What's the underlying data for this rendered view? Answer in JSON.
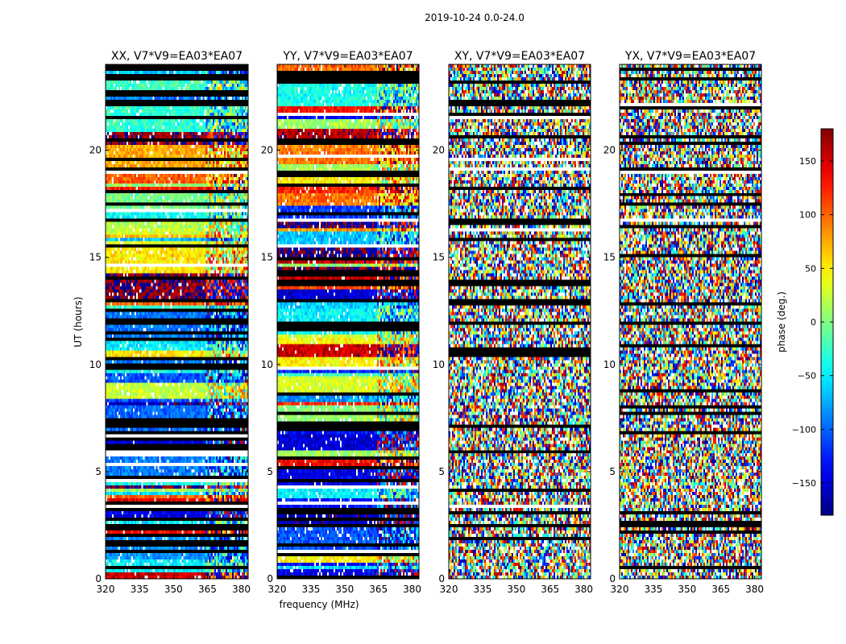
{
  "figure_title": "2019-10-24 0.0-24.0",
  "chart_data": [
    {
      "type": "heatmap",
      "title": "XX, V7*V9=EA03*EA07",
      "xlabel": "",
      "ylabel": "UT (hours)",
      "xlim": [
        320,
        383
      ],
      "ylim": [
        0,
        24
      ],
      "xticks": [
        320,
        335,
        350,
        365,
        380
      ],
      "yticks": [
        0,
        5,
        10,
        15,
        20
      ],
      "value": "phase (deg.)",
      "value_range": [
        -180,
        180
      ],
      "pattern": "coherent"
    },
    {
      "type": "heatmap",
      "title": "YY, V7*V9=EA03*EA07",
      "xlabel": "frequency (MHz)",
      "ylabel": "",
      "xlim": [
        320,
        383
      ],
      "ylim": [
        0,
        24
      ],
      "xticks": [
        320,
        335,
        350,
        365,
        380
      ],
      "yticks": [
        0,
        5,
        10,
        15,
        20
      ],
      "value": "phase (deg.)",
      "value_range": [
        -180,
        180
      ],
      "pattern": "coherent"
    },
    {
      "type": "heatmap",
      "title": "XY, V7*V9=EA03*EA07",
      "xlabel": "",
      "ylabel": "",
      "xlim": [
        320,
        383
      ],
      "ylim": [
        0,
        24
      ],
      "xticks": [
        320,
        335,
        350,
        365,
        380
      ],
      "yticks": [
        0,
        5,
        10,
        15,
        20
      ],
      "value": "phase (deg.)",
      "value_range": [
        -180,
        180
      ],
      "pattern": "noisy"
    },
    {
      "type": "heatmap",
      "title": "YX, V7*V9=EA03*EA07",
      "xlabel": "",
      "ylabel": "",
      "xlim": [
        320,
        383
      ],
      "ylim": [
        0,
        24
      ],
      "xticks": [
        320,
        335,
        350,
        365,
        380
      ],
      "yticks": [
        0,
        5,
        10,
        15,
        20
      ],
      "value": "phase (deg.)",
      "value_range": [
        -180,
        180
      ],
      "pattern": "noisy"
    }
  ],
  "colorbar": {
    "label": "phase (deg.)",
    "range": [
      -180,
      180
    ],
    "ticks": [
      -150,
      -100,
      -50,
      0,
      50,
      100,
      150
    ],
    "tick_labels": [
      "−150",
      "−100",
      "−50",
      "0",
      "50",
      "100",
      "150"
    ],
    "colormap": "jet"
  }
}
